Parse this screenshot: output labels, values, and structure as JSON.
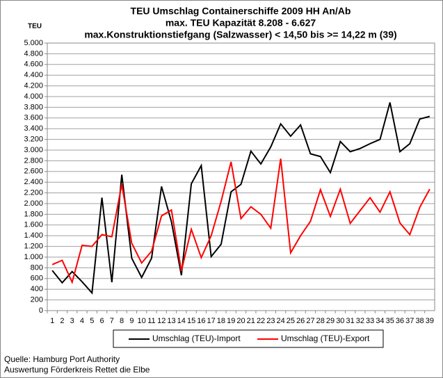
{
  "chart_data": {
    "type": "line",
    "title": [
      "TEU Umschlag Containerschiffe 2009 HH An/Ab",
      "max. TEU Kapazität  8.208 - 6.627",
      "max.Konstruktionstiefgang (Salzwasser) < 14,50 bis >= 14,22 m (39)"
    ],
    "y_label": "TEU",
    "categories": [
      "1",
      "2",
      "3",
      "4",
      "5",
      "6",
      "7",
      "8",
      "9",
      "10",
      "11",
      "12",
      "13",
      "14",
      "15",
      "16",
      "17",
      "18",
      "19",
      "20",
      "21",
      "22",
      "23",
      "24",
      "25",
      "26",
      "27",
      "28",
      "29",
      "30",
      "31",
      "32",
      "33",
      "34",
      "35",
      "36",
      "37",
      "38",
      "39"
    ],
    "series": [
      {
        "name": "Umschlag (TEU)-Import",
        "color": "#000000",
        "values": [
          750,
          520,
          730,
          540,
          330,
          2110,
          530,
          2540,
          980,
          620,
          980,
          2320,
          1660,
          660,
          2370,
          2710,
          1010,
          1240,
          2220,
          2360,
          2980,
          2740,
          3060,
          3490,
          3260,
          3470,
          2930,
          2880,
          2580,
          3160,
          2970,
          3030,
          3120,
          3200,
          3890,
          2970,
          3120,
          3580,
          3630
        ]
      },
      {
        "name": "Umschlag (TEU)-Export",
        "color": "#ff0000",
        "values": [
          860,
          940,
          530,
          1220,
          1200,
          1420,
          1380,
          2360,
          1260,
          890,
          1110,
          1770,
          1880,
          740,
          1520,
          990,
          1400,
          2040,
          2780,
          1720,
          1940,
          1800,
          1540,
          2840,
          1080,
          1400,
          1670,
          2260,
          1760,
          2270,
          1630,
          1870,
          2110,
          1840,
          2220,
          1640,
          1420,
          1930,
          2270
        ]
      }
    ],
    "ylim": [
      0,
      5000
    ],
    "yticks": [
      0,
      200,
      400,
      600,
      800,
      {
        "value": 1000,
        "label": "1.000"
      },
      {
        "value": 1200,
        "label": "1.200"
      },
      {
        "value": 1400,
        "label": "1.400"
      },
      {
        "value": 1600,
        "label": "1.600"
      },
      {
        "value": 1800,
        "label": "1.800"
      },
      {
        "value": 2000,
        "label": "2.000"
      },
      {
        "value": 2200,
        "label": "2.200"
      },
      {
        "value": 2400,
        "label": "2.400"
      },
      {
        "value": 2600,
        "label": "2.600"
      },
      {
        "value": 2800,
        "label": "2.800"
      },
      {
        "value": 3000,
        "label": "3.000"
      },
      {
        "value": 3200,
        "label": "3.200"
      },
      {
        "value": 3400,
        "label": "3.400"
      },
      {
        "value": 3600,
        "label": "3.600"
      },
      {
        "value": 3800,
        "label": "3.800"
      },
      {
        "value": 4000,
        "label": "4.000"
      },
      {
        "value": 4200,
        "label": "4.200"
      },
      {
        "value": 4400,
        "label": "4.400"
      },
      {
        "value": 4600,
        "label": "4.600"
      },
      {
        "value": 4800,
        "label": "4.800"
      },
      {
        "value": 5000,
        "label": "5.000"
      }
    ],
    "grid": true,
    "legend": "bottom",
    "notes": [
      "Quelle: Hamburg Port Authority",
      "Auswertung Förderkreis Rettet die Elbe"
    ]
  }
}
